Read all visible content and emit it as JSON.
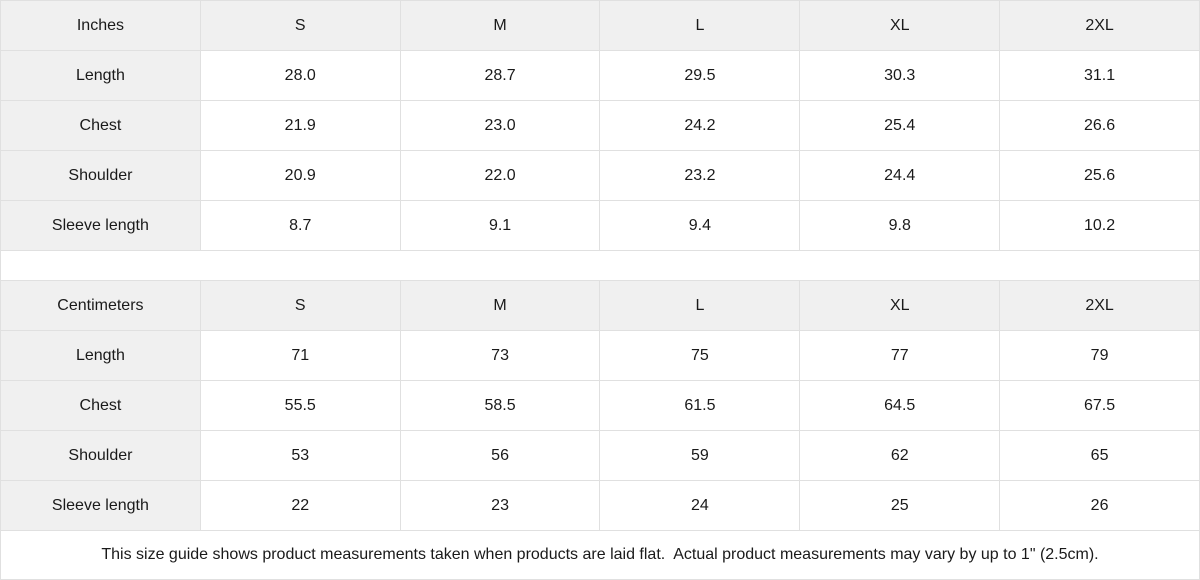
{
  "tables": [
    {
      "unit_label": "Inches",
      "columns": [
        "S",
        "M",
        "L",
        "XL",
        "2XL"
      ],
      "rows": [
        {
          "label": "Length",
          "values": [
            "28.0",
            "28.7",
            "29.5",
            "30.3",
            "31.1"
          ]
        },
        {
          "label": "Chest",
          "values": [
            "21.9",
            "23.0",
            "24.2",
            "25.4",
            "26.6"
          ]
        },
        {
          "label": "Shoulder",
          "values": [
            "20.9",
            "22.0",
            "23.2",
            "24.4",
            "25.6"
          ]
        },
        {
          "label": "Sleeve length",
          "values": [
            "8.7",
            "9.1",
            "9.4",
            "9.8",
            "10.2"
          ]
        }
      ]
    },
    {
      "unit_label": "Centimeters",
      "columns": [
        "S",
        "M",
        "L",
        "XL",
        "2XL"
      ],
      "rows": [
        {
          "label": "Length",
          "values": [
            "71",
            "73",
            "75",
            "77",
            "79"
          ]
        },
        {
          "label": "Chest",
          "values": [
            "55.5",
            "58.5",
            "61.5",
            "64.5",
            "67.5"
          ]
        },
        {
          "label": "Shoulder",
          "values": [
            "53",
            "56",
            "59",
            "62",
            "65"
          ]
        },
        {
          "label": "Sleeve length",
          "values": [
            "22",
            "23",
            "24",
            "25",
            "26"
          ]
        }
      ]
    }
  ],
  "footer": {
    "note": "This size guide shows product measurements taken when products are laid flat.  Actual product measurements may vary by up to 1\" (2.5cm)."
  },
  "colors": {
    "header_bg": "#f0f0f0",
    "border": "#e0e0e0",
    "text": "#1a1a1a"
  }
}
